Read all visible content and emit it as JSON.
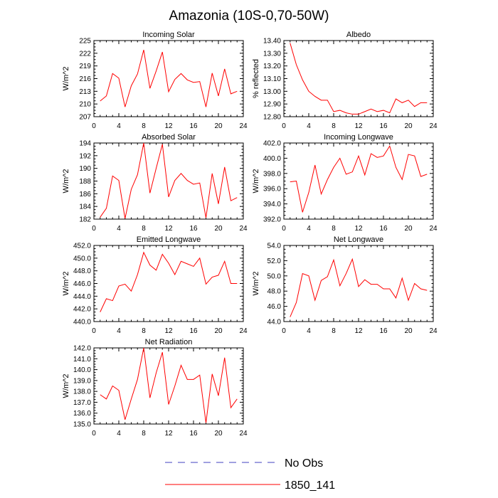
{
  "figure_title": "Amazonia (10S-0,70-50W)",
  "legend": [
    {
      "label": "No Obs",
      "color": "#4040c0",
      "style": "dashed"
    },
    {
      "label": "1850_141",
      "color": "#ff0000",
      "style": "solid"
    }
  ],
  "chart_data": [
    {
      "type": "line",
      "title": "Incoming Solar",
      "xlabel": "",
      "ylabel": "W/m^2",
      "xlim": [
        0,
        24
      ],
      "ylim": [
        207,
        225
      ],
      "xticks": [
        "0",
        "4",
        "8",
        "12",
        "16",
        "20",
        "24"
      ],
      "yticks": [
        "207",
        "210",
        "213",
        "216",
        "219",
        "222",
        "225"
      ],
      "series": [
        {
          "name": "1850_141",
          "x": [
            1,
            2,
            3,
            4,
            5,
            6,
            7,
            8,
            9,
            10,
            11,
            12,
            13,
            14,
            15,
            16,
            17,
            18,
            19,
            20,
            21,
            22,
            23
          ],
          "values": [
            210.7,
            211.9,
            217.2,
            216.1,
            209.3,
            214.3,
            217.1,
            222.8,
            213.7,
            217.8,
            222.3,
            212.9,
            215.8,
            217.2,
            215.7,
            215.1,
            215.3,
            209.3,
            217.3,
            211.9,
            218.3,
            212.4,
            213.0
          ]
        }
      ]
    },
    {
      "type": "line",
      "title": "Albedo",
      "xlabel": "",
      "ylabel": "% reflected",
      "xlim": [
        0,
        24
      ],
      "ylim": [
        12.8,
        13.4
      ],
      "xticks": [
        "0",
        "4",
        "8",
        "12",
        "16",
        "20",
        "24"
      ],
      "yticks": [
        "12.80",
        "12.90",
        "13.00",
        "13.10",
        "13.20",
        "13.30",
        "13.40"
      ],
      "series": [
        {
          "name": "1850_141",
          "x": [
            1,
            2,
            3,
            4,
            5,
            6,
            7,
            8,
            9,
            10,
            11,
            12,
            13,
            14,
            15,
            16,
            17,
            18,
            19,
            20,
            21,
            22,
            23
          ],
          "values": [
            13.38,
            13.21,
            13.09,
            13.0,
            12.96,
            12.93,
            12.93,
            12.84,
            12.85,
            12.83,
            12.82,
            12.82,
            12.84,
            12.86,
            12.84,
            12.85,
            12.83,
            12.94,
            12.91,
            12.93,
            12.88,
            12.91,
            12.91
          ]
        }
      ]
    },
    {
      "type": "line",
      "title": "Absorbed Solar",
      "xlabel": "",
      "ylabel": "W/m^2",
      "xlim": [
        0,
        24
      ],
      "ylim": [
        182,
        194
      ],
      "xticks": [
        "0",
        "4",
        "8",
        "12",
        "16",
        "20",
        "24"
      ],
      "yticks": [
        "182",
        "184",
        "186",
        "188",
        "190",
        "192",
        "194"
      ],
      "series": [
        {
          "name": "1850_141",
          "x": [
            1,
            2,
            3,
            4,
            5,
            6,
            7,
            8,
            9,
            10,
            11,
            12,
            13,
            14,
            15,
            16,
            17,
            18,
            19,
            20,
            21,
            22,
            23
          ],
          "values": [
            182.3,
            183.7,
            188.8,
            188.1,
            182.1,
            186.7,
            189.0,
            194.0,
            186.1,
            190.0,
            193.8,
            185.5,
            188.1,
            189.2,
            188.1,
            187.5,
            187.7,
            182.2,
            189.2,
            184.4,
            190.2,
            184.9,
            185.4
          ]
        }
      ]
    },
    {
      "type": "line",
      "title": "Incoming Longwave",
      "xlabel": "",
      "ylabel": "W/m^2",
      "xlim": [
        0,
        24
      ],
      "ylim": [
        392,
        402
      ],
      "xticks": [
        "0",
        "4",
        "8",
        "12",
        "16",
        "20",
        "24"
      ],
      "yticks": [
        "392.0",
        "394.0",
        "396.0",
        "398.0",
        "400.0",
        "402.0"
      ],
      "series": [
        {
          "name": "1850_141",
          "x": [
            1,
            2,
            3,
            4,
            5,
            6,
            7,
            8,
            9,
            10,
            11,
            12,
            13,
            14,
            15,
            16,
            17,
            18,
            19,
            20,
            21,
            22,
            23
          ],
          "values": [
            396.9,
            397.0,
            392.9,
            395.5,
            399.1,
            395.3,
            397.2,
            398.8,
            400.0,
            397.9,
            398.2,
            400.3,
            397.8,
            400.6,
            400.1,
            400.3,
            401.6,
            398.8,
            397.2,
            400.5,
            400.3,
            397.6,
            397.9
          ]
        }
      ]
    },
    {
      "type": "line",
      "title": "Emitted Longwave",
      "xlabel": "",
      "ylabel": "W/m^2",
      "xlim": [
        0,
        24
      ],
      "ylim": [
        440,
        452
      ],
      "xticks": [
        "0",
        "4",
        "8",
        "12",
        "16",
        "20",
        "24"
      ],
      "yticks": [
        "440.0",
        "442.0",
        "444.0",
        "446.0",
        "448.0",
        "450.0",
        "452.0"
      ],
      "series": [
        {
          "name": "1850_141",
          "x": [
            1,
            2,
            3,
            4,
            5,
            6,
            7,
            8,
            9,
            10,
            11,
            12,
            13,
            14,
            15,
            16,
            17,
            18,
            19,
            20,
            21,
            22,
            23
          ],
          "values": [
            441.5,
            443.6,
            443.3,
            445.6,
            445.9,
            444.8,
            447.4,
            450.9,
            448.9,
            448.1,
            450.6,
            449.2,
            447.4,
            449.5,
            449.1,
            448.7,
            450.0,
            445.9,
            447.0,
            447.3,
            449.5,
            446.0,
            446.0
          ]
        }
      ]
    },
    {
      "type": "line",
      "title": "Net Longwave",
      "xlabel": "",
      "ylabel": "W/m^2",
      "xlim": [
        0,
        24
      ],
      "ylim": [
        44,
        54
      ],
      "xticks": [
        "0",
        "4",
        "8",
        "12",
        "16",
        "20",
        "24"
      ],
      "yticks": [
        "44.0",
        "46.0",
        "48.0",
        "50.0",
        "52.0",
        "54.0"
      ],
      "series": [
        {
          "name": "1850_141",
          "x": [
            1,
            2,
            3,
            4,
            5,
            6,
            7,
            8,
            9,
            10,
            11,
            12,
            13,
            14,
            15,
            16,
            17,
            18,
            19,
            20,
            21,
            22,
            23
          ],
          "values": [
            44.6,
            46.5,
            50.3,
            50.0,
            46.8,
            49.4,
            49.9,
            52.1,
            48.7,
            50.3,
            52.2,
            48.6,
            49.5,
            48.9,
            48.9,
            48.3,
            48.3,
            47.1,
            49.7,
            46.8,
            49.0,
            48.3,
            48.1
          ]
        }
      ]
    },
    {
      "type": "line",
      "title": "Net Radiation",
      "xlabel": "",
      "ylabel": "W/m^2",
      "xlim": [
        0,
        24
      ],
      "ylim": [
        135,
        142
      ],
      "xticks": [
        "0",
        "4",
        "8",
        "12",
        "16",
        "20",
        "24"
      ],
      "yticks": [
        "135.0",
        "136.0",
        "137.0",
        "138.0",
        "139.0",
        "140.0",
        "141.0",
        "142.0"
      ],
      "series": [
        {
          "name": "1850_141",
          "x": [
            1,
            2,
            3,
            4,
            5,
            6,
            7,
            8,
            9,
            10,
            11,
            12,
            13,
            14,
            15,
            16,
            17,
            18,
            19,
            20,
            21,
            22,
            23
          ],
          "values": [
            137.7,
            137.3,
            138.5,
            138.1,
            135.4,
            137.3,
            139.1,
            142.0,
            137.4,
            139.7,
            141.6,
            136.8,
            138.5,
            140.4,
            139.1,
            139.1,
            139.5,
            135.1,
            139.6,
            137.6,
            141.1,
            136.5,
            137.3
          ]
        }
      ]
    }
  ]
}
